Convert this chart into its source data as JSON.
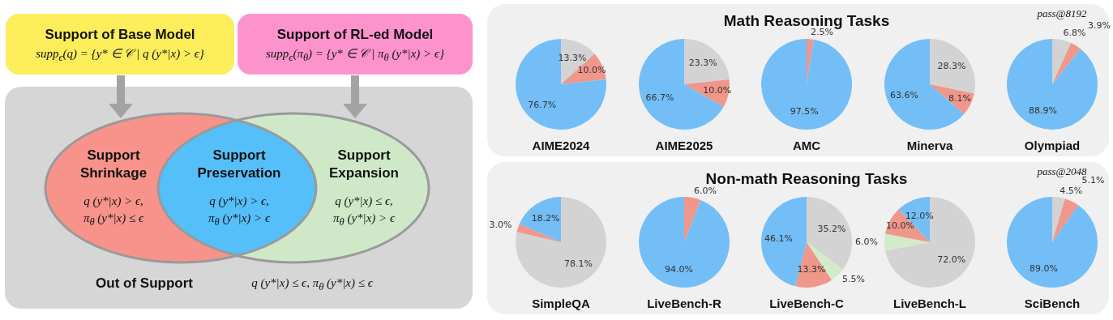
{
  "chart_data": [
    {
      "type": "other",
      "annotations": [
        "Support of Base Model",
        "supp$_{ϵ}$(q) = {y* ∈ 𝒞 | q (y*|x) > ϵ}",
        "Support of RL-ed Model",
        "supp$_{ϵ}$(π$_{θ}$) = {y* ∈ 𝒞 | π$_{θ}$ (y*|x) > ϵ}",
        "Support Shrinkage",
        "q (y*|x) > ϵ,",
        "π$_{θ}$ (y*|x) ≤ ϵ",
        "Support Preservation",
        "q (y*|x) > ϵ,",
        "π$_{θ}$ (y*|x) > ϵ",
        "Support Expansion",
        "q (y*|x) ≤ ϵ,",
        "π$_{θ}$ (y*|x) > ϵ",
        "Out of Support",
        "q (y*|x) ≤ ϵ, π$_{θ}$ (y*|x) ≤ ϵ"
      ]
    },
    {
      "type": "other",
      "title": "Math Reasoning Tasks",
      "subtitle": "pass@8192"
    },
    {
      "type": "pie",
      "xlabel": "AIME2024",
      "categories": [
        null,
        null,
        null
      ],
      "values": [
        13.3,
        10.0,
        76.7
      ],
      "colors": [
        "#d3d3d3",
        "#ef978a",
        "#73bef7"
      ],
      "value_labels": [
        "13.3%",
        "10.0%",
        "76.7%"
      ]
    },
    {
      "type": "pie",
      "xlabel": "AIME2025",
      "categories": [
        null,
        null,
        null
      ],
      "values": [
        23.3,
        10.0,
        66.7
      ],
      "colors": [
        "#d3d3d3",
        "#ef978a",
        "#73bef7"
      ],
      "value_labels": [
        "23.3%",
        "10.0%",
        "66.7%"
      ]
    },
    {
      "type": "pie",
      "xlabel": "AMC",
      "categories": [
        null,
        null
      ],
      "values": [
        2.5,
        97.5
      ],
      "colors": [
        "#ef978a",
        "#73bef7"
      ],
      "value_labels": [
        "2.5%",
        "97.5%"
      ]
    },
    {
      "type": "pie",
      "xlabel": "Minerva",
      "categories": [
        null,
        null,
        null
      ],
      "values": [
        28.3,
        8.1,
        63.6
      ],
      "colors": [
        "#d3d3d3",
        "#ef978a",
        "#73bef7"
      ],
      "value_labels": [
        "28.3%",
        "8.1%",
        "63.6%"
      ]
    },
    {
      "type": "pie",
      "xlabel": "Olympiad",
      "categories": [
        null,
        null,
        null
      ],
      "values": [
        6.8,
        3.9,
        88.9
      ],
      "colors": [
        "#d3d3d3",
        "#ef978a",
        "#73bef7"
      ],
      "value_labels": [
        "6.8%",
        "3.9%",
        "88.9%"
      ]
    },
    {
      "type": "other",
      "title": "Non-math Reasoning Tasks",
      "subtitle": "pass@2048"
    },
    {
      "type": "pie",
      "xlabel": "SimpleQA",
      "categories": [
        null,
        null,
        null
      ],
      "values": [
        78.1,
        3.0,
        18.2
      ],
      "colors": [
        "#d3d3d3",
        "#ef978a",
        "#73bef7"
      ],
      "value_labels": [
        "78.1%",
        "3.0%",
        "18.2%"
      ]
    },
    {
      "type": "pie",
      "xlabel": "LiveBench-R",
      "categories": [
        null,
        null
      ],
      "values": [
        6.0,
        94.0
      ],
      "colors": [
        "#ef978a",
        "#73bef7"
      ],
      "value_labels": [
        "6.0%",
        "94.0%"
      ]
    },
    {
      "type": "pie",
      "xlabel": "LiveBench-C",
      "categories": [
        null,
        null,
        null,
        null
      ],
      "values": [
        35.2,
        5.5,
        13.3,
        46.1
      ],
      "colors": [
        "#d3d3d3",
        "#d2ebcb",
        "#ef978a",
        "#73bef7"
      ],
      "value_labels": [
        "35.2%",
        "5.5%",
        "13.3%",
        "46.1%"
      ]
    },
    {
      "type": "pie",
      "xlabel": "LiveBench-L",
      "categories": [
        null,
        null,
        null,
        null
      ],
      "values": [
        72.0,
        6.0,
        10.0,
        12.0
      ],
      "colors": [
        "#d3d3d3",
        "#d2ebcb",
        "#ef978a",
        "#73bef7"
      ],
      "value_labels": [
        "72.0%",
        "6.0%",
        "10.0%",
        "12.0%"
      ]
    },
    {
      "type": "pie",
      "xlabel": "SciBench",
      "categories": [
        null,
        null,
        null
      ],
      "values": [
        4.5,
        5.1,
        89.0
      ],
      "colors": [
        "#d3d3d3",
        "#ef978a",
        "#73bef7"
      ],
      "value_labels": [
        "4.5%",
        "5.1%",
        "89.0%"
      ]
    }
  ]
}
